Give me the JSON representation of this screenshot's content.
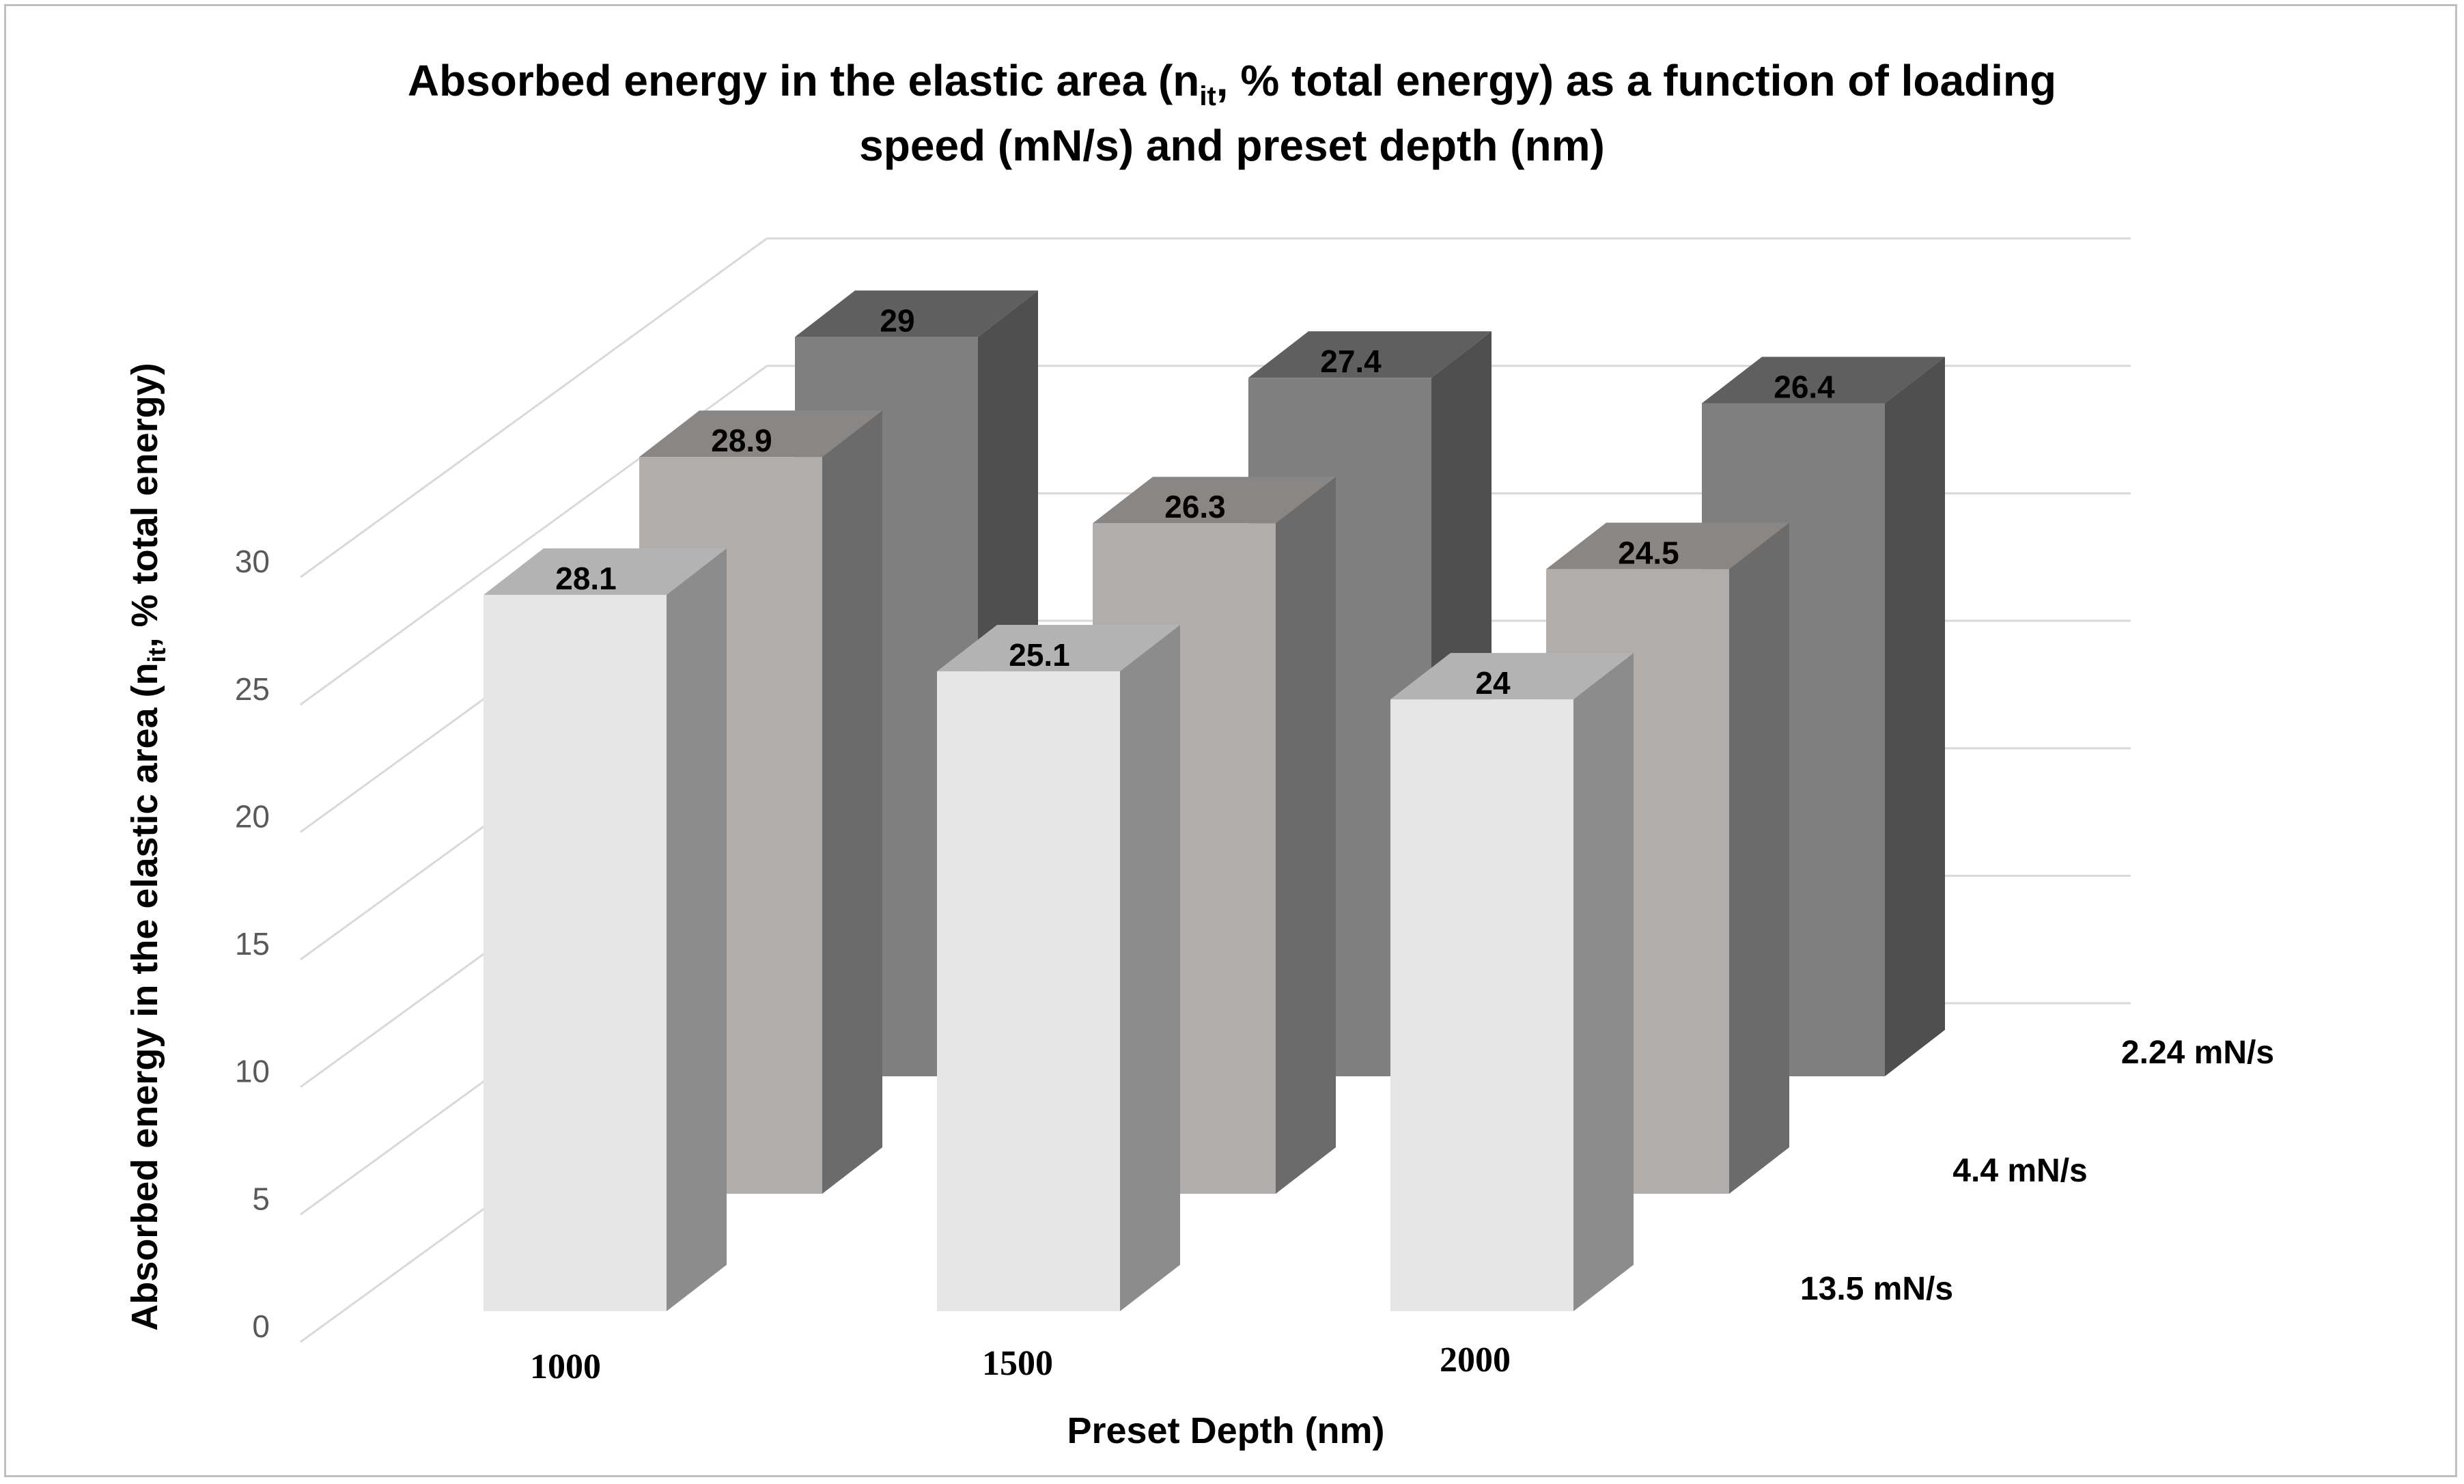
{
  "chart_data": {
    "type": "bar",
    "style": "3d-column",
    "title_line1": "Absorbed energy in the elastic area (n",
    "title_sub": "it",
    "title_line1_end": ", % total energy) as a function of loading",
    "title_line2": "speed (mN/s) and preset depth (nm)",
    "ylabel_start": "Absorbed energy in the elastic area (n",
    "ylabel_sub": "it",
    "ylabel_end": ", % total energy)",
    "xlabel": "Preset Depth (nm)",
    "ylim": [
      0,
      30
    ],
    "yticks": [
      0,
      5,
      10,
      15,
      20,
      25,
      30
    ],
    "ytick_labels": [
      "0",
      "5",
      "10",
      "15",
      "20",
      "25",
      "30"
    ],
    "categories": [
      "1000",
      "1500",
      "2000"
    ],
    "series": [
      {
        "name": "13.5 mN/s",
        "values": [
          28.1,
          25.1,
          24
        ],
        "labels": [
          "28.1",
          "25.1",
          "24"
        ]
      },
      {
        "name": "4.4 mN/s",
        "values": [
          28.9,
          26.3,
          24.5
        ],
        "labels": [
          "28.9",
          "26.3",
          "24.5"
        ]
      },
      {
        "name": "2.24 mN/s",
        "values": [
          29,
          27.4,
          26.4
        ],
        "labels": [
          "29",
          "27.4",
          "26.4"
        ]
      }
    ],
    "colors": {
      "front": [
        "#e6e6e6",
        "#b0adab",
        "#7f7f7f"
      ],
      "side": [
        "#8c8c8c",
        "#6b6b6b",
        "#4f4f4f"
      ],
      "top": [
        "#b3b3b3",
        "#8a8683",
        "#5f5f5f"
      ]
    }
  }
}
